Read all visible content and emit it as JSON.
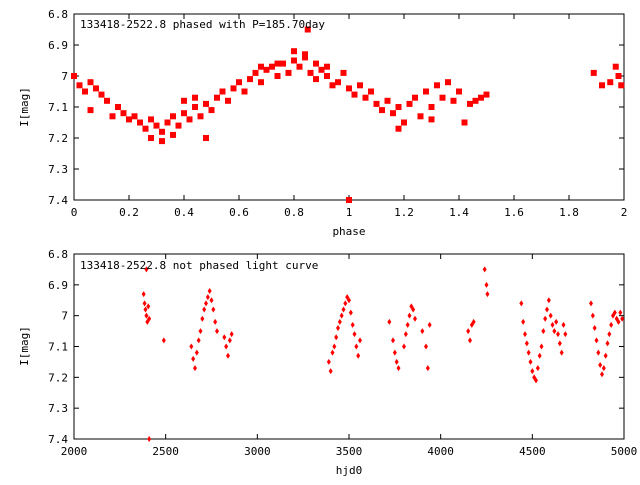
{
  "chart_data": [
    {
      "type": "scatter",
      "title": "133418-2522.8 phased with P=185.70day",
      "xlabel": "phase",
      "ylabel": "I[mag]",
      "xlim": [
        0,
        2
      ],
      "ylim": [
        7.4,
        6.8
      ],
      "y_inverted": true,
      "x_ticks": [
        "0",
        "0.2",
        "0.4",
        "0.6",
        "0.8",
        "1",
        "1.2",
        "1.4",
        "1.6",
        "1.8",
        "2"
      ],
      "x_tick_values": [
        0,
        0.2,
        0.4,
        0.6,
        0.8,
        1.0,
        1.2,
        1.4,
        1.6,
        1.8,
        2.0
      ],
      "y_ticks": [
        "6.8",
        "6.9",
        "7",
        "7.1",
        "7.2",
        "7.3",
        "7.4"
      ],
      "y_tick_values": [
        6.8,
        6.9,
        7.0,
        7.1,
        7.2,
        7.3,
        7.4
      ],
      "marker_color": "#ff0000",
      "series": [
        {
          "points": [
            [
              0.0,
              7.0
            ],
            [
              0.02,
              7.03
            ],
            [
              0.04,
              7.05
            ],
            [
              0.06,
              7.02
            ],
            [
              0.08,
              7.04
            ],
            [
              0.1,
              7.06
            ],
            [
              0.06,
              7.11
            ],
            [
              0.12,
              7.08
            ],
            [
              0.14,
              7.13
            ],
            [
              0.16,
              7.1
            ],
            [
              0.18,
              7.12
            ],
            [
              0.2,
              7.14
            ],
            [
              0.22,
              7.13
            ],
            [
              0.24,
              7.15
            ],
            [
              0.26,
              7.17
            ],
            [
              0.28,
              7.14
            ],
            [
              0.3,
              7.16
            ],
            [
              0.32,
              7.18
            ],
            [
              0.34,
              7.15
            ],
            [
              0.36,
              7.13
            ],
            [
              0.38,
              7.16
            ],
            [
              0.4,
              7.12
            ],
            [
              0.42,
              7.14
            ],
            [
              0.44,
              7.1
            ],
            [
              0.46,
              7.13
            ],
            [
              0.48,
              7.09
            ],
            [
              0.5,
              7.11
            ],
            [
              0.52,
              7.07
            ],
            [
              0.54,
              7.05
            ],
            [
              0.56,
              7.08
            ],
            [
              0.58,
              7.04
            ],
            [
              0.6,
              7.02
            ],
            [
              0.62,
              7.05
            ],
            [
              0.64,
              7.01
            ],
            [
              0.66,
              6.99
            ],
            [
              0.68,
              7.02
            ],
            [
              0.7,
              6.98
            ],
            [
              0.72,
              6.97
            ],
            [
              0.74,
              7.0
            ],
            [
              0.76,
              6.96
            ],
            [
              0.78,
              6.99
            ],
            [
              0.8,
              6.95
            ],
            [
              0.82,
              6.97
            ],
            [
              0.84,
              6.94
            ],
            [
              0.85,
              6.85
            ],
            [
              0.86,
              6.99
            ],
            [
              0.88,
              7.01
            ],
            [
              0.9,
              6.98
            ],
            [
              0.92,
              7.0
            ],
            [
              0.94,
              7.03
            ],
            [
              0.96,
              7.02
            ],
            [
              0.98,
              6.99
            ],
            [
              1.0,
              7.04
            ],
            [
              1.02,
              7.06
            ],
            [
              1.04,
              7.03
            ],
            [
              1.06,
              7.07
            ],
            [
              1.08,
              7.05
            ],
            [
              1.1,
              7.09
            ],
            [
              1.12,
              7.11
            ],
            [
              1.14,
              7.08
            ],
            [
              1.16,
              7.12
            ],
            [
              1.18,
              7.1
            ],
            [
              1.2,
              7.15
            ],
            [
              1.22,
              7.09
            ],
            [
              1.24,
              7.07
            ],
            [
              1.26,
              7.13
            ],
            [
              1.28,
              7.05
            ],
            [
              1.3,
              7.1
            ],
            [
              1.32,
              7.03
            ],
            [
              1.34,
              7.07
            ],
            [
              1.36,
              7.02
            ],
            [
              1.38,
              7.08
            ],
            [
              1.4,
              7.05
            ],
            [
              1.42,
              7.15
            ],
            [
              1.44,
              7.09
            ],
            [
              1.46,
              7.08
            ],
            [
              1.48,
              7.07
            ],
            [
              1.5,
              7.06
            ],
            [
              1.0,
              7.4
            ],
            [
              0.28,
              7.2
            ],
            [
              0.32,
              7.21
            ],
            [
              0.36,
              7.19
            ],
            [
              0.48,
              7.2
            ],
            [
              0.4,
              7.08
            ],
            [
              0.44,
              7.07
            ],
            [
              0.68,
              6.97
            ],
            [
              0.74,
              6.96
            ],
            [
              0.8,
              6.92
            ],
            [
              0.84,
              6.93
            ],
            [
              0.88,
              6.96
            ],
            [
              0.92,
              6.97
            ],
            [
              1.18,
              7.17
            ],
            [
              1.3,
              7.14
            ],
            [
              1.89,
              6.99
            ],
            [
              1.92,
              7.03
            ],
            [
              1.95,
              7.02
            ],
            [
              1.97,
              6.97
            ],
            [
              1.99,
              7.03
            ],
            [
              1.98,
              7.0
            ]
          ]
        }
      ]
    },
    {
      "type": "scatter",
      "title": "133418-2522.8 not phased light curve",
      "xlabel": "hjd0",
      "ylabel": "I[mag]",
      "xlim": [
        2000,
        5000
      ],
      "ylim": [
        7.4,
        6.8
      ],
      "y_inverted": true,
      "x_ticks": [
        "2000",
        "2500",
        "3000",
        "3500",
        "4000",
        "4500",
        "5000"
      ],
      "x_tick_values": [
        2000,
        2500,
        3000,
        3500,
        4000,
        4500,
        5000
      ],
      "y_ticks": [
        "6.8",
        "6.9",
        "7",
        "7.1",
        "7.2",
        "7.3",
        "7.4"
      ],
      "y_tick_values": [
        6.8,
        6.9,
        7.0,
        7.1,
        7.2,
        7.3,
        7.4
      ],
      "marker_color": "#ff0000",
      "series": [
        {
          "points": [
            [
              2380,
              6.93
            ],
            [
              2385,
              6.96
            ],
            [
              2390,
              6.98
            ],
            [
              2395,
              7.0
            ],
            [
              2400,
              7.02
            ],
            [
              2405,
              6.97
            ],
            [
              2410,
              7.01
            ],
            [
              2395,
              6.85
            ],
            [
              2410,
              7.4
            ],
            [
              2490,
              7.08
            ],
            [
              2640,
              7.1
            ],
            [
              2650,
              7.14
            ],
            [
              2660,
              7.17
            ],
            [
              2670,
              7.12
            ],
            [
              2680,
              7.08
            ],
            [
              2690,
              7.05
            ],
            [
              2700,
              7.01
            ],
            [
              2710,
              6.98
            ],
            [
              2720,
              6.96
            ],
            [
              2730,
              6.94
            ],
            [
              2740,
              6.92
            ],
            [
              2750,
              6.95
            ],
            [
              2760,
              6.98
            ],
            [
              2770,
              7.02
            ],
            [
              2780,
              7.05
            ],
            [
              2820,
              7.07
            ],
            [
              2830,
              7.1
            ],
            [
              2840,
              7.13
            ],
            [
              2850,
              7.08
            ],
            [
              2860,
              7.06
            ],
            [
              3390,
              7.15
            ],
            [
              3400,
              7.18
            ],
            [
              3410,
              7.12
            ],
            [
              3420,
              7.1
            ],
            [
              3430,
              7.07
            ],
            [
              3440,
              7.04
            ],
            [
              3450,
              7.02
            ],
            [
              3460,
              7.0
            ],
            [
              3470,
              6.98
            ],
            [
              3480,
              6.96
            ],
            [
              3490,
              6.94
            ],
            [
              3500,
              6.95
            ],
            [
              3510,
              6.99
            ],
            [
              3520,
              7.03
            ],
            [
              3530,
              7.06
            ],
            [
              3540,
              7.1
            ],
            [
              3550,
              7.13
            ],
            [
              3560,
              7.08
            ],
            [
              3720,
              7.02
            ],
            [
              3740,
              7.08
            ],
            [
              3750,
              7.12
            ],
            [
              3760,
              7.15
            ],
            [
              3770,
              7.17
            ],
            [
              3800,
              7.1
            ],
            [
              3810,
              7.06
            ],
            [
              3820,
              7.03
            ],
            [
              3830,
              7.0
            ],
            [
              3840,
              6.97
            ],
            [
              3850,
              6.98
            ],
            [
              3860,
              7.01
            ],
            [
              3900,
              7.05
            ],
            [
              3920,
              7.1
            ],
            [
              3930,
              7.17
            ],
            [
              3940,
              7.03
            ],
            [
              4150,
              7.05
            ],
            [
              4160,
              7.08
            ],
            [
              4170,
              7.03
            ],
            [
              4180,
              7.02
            ],
            [
              4240,
              6.85
            ],
            [
              4250,
              6.9
            ],
            [
              4255,
              6.93
            ],
            [
              4440,
              6.96
            ],
            [
              4450,
              7.02
            ],
            [
              4460,
              7.06
            ],
            [
              4470,
              7.09
            ],
            [
              4480,
              7.12
            ],
            [
              4490,
              7.15
            ],
            [
              4500,
              7.18
            ],
            [
              4510,
              7.2
            ],
            [
              4520,
              7.21
            ],
            [
              4530,
              7.17
            ],
            [
              4540,
              7.13
            ],
            [
              4550,
              7.1
            ],
            [
              4560,
              7.05
            ],
            [
              4570,
              7.01
            ],
            [
              4580,
              6.98
            ],
            [
              4590,
              6.95
            ],
            [
              4600,
              7.0
            ],
            [
              4610,
              7.03
            ],
            [
              4620,
              7.05
            ],
            [
              4630,
              7.02
            ],
            [
              4640,
              7.06
            ],
            [
              4650,
              7.09
            ],
            [
              4660,
              7.12
            ],
            [
              4670,
              7.03
            ],
            [
              4680,
              7.06
            ],
            [
              4820,
              6.96
            ],
            [
              4830,
              7.0
            ],
            [
              4840,
              7.04
            ],
            [
              4850,
              7.08
            ],
            [
              4860,
              7.12
            ],
            [
              4870,
              7.16
            ],
            [
              4880,
              7.19
            ],
            [
              4890,
              7.17
            ],
            [
              4900,
              7.13
            ],
            [
              4910,
              7.09
            ],
            [
              4920,
              7.06
            ],
            [
              4930,
              7.03
            ],
            [
              4940,
              7.0
            ],
            [
              4950,
              6.99
            ],
            [
              4960,
              7.01
            ],
            [
              4970,
              7.02
            ],
            [
              4980,
              6.99
            ],
            [
              4990,
              7.01
            ]
          ]
        }
      ]
    }
  ]
}
